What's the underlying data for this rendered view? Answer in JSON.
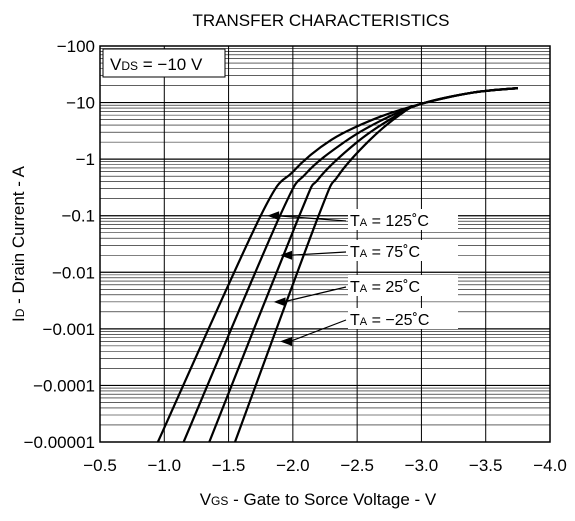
{
  "chart_data": {
    "type": "line",
    "title": "TRANSFER CHARACTERISTICS",
    "xlabel": "VGS - Gate to Sorce Voltage - V",
    "xlabel_parts": {
      "main": "V",
      "sub": "GS",
      "rest": " - Gate to Sorce Voltage - V"
    },
    "ylabel": "ID - Drain Current - A",
    "ylabel_parts": {
      "main": "I",
      "sub": "D",
      "rest": " - Drain Current - A"
    },
    "condition": "VDS = −10 V",
    "condition_parts": {
      "main": "V",
      "sub": "DS",
      "rest": " = −10 V"
    },
    "x_ticks": [
      "−0.5",
      "−1.0",
      "−1.5",
      "−2.0",
      "−2.5",
      "−3.0",
      "−3.5",
      "−4.0"
    ],
    "y_ticks": [
      "−0.00001",
      "−0.0001",
      "−0.001",
      "−0.01",
      "−0.1",
      "−1",
      "−10",
      "−100"
    ],
    "xlim": [
      -0.5,
      -4.0
    ],
    "ylim": [
      -1e-05,
      -100
    ],
    "y_scale": "log",
    "grid": true,
    "series": [
      {
        "name": "TA = 125˚C",
        "label_main": "T",
        "label_sub": "A",
        "label_rest": " = 125˚C",
        "x": [
          -0.95,
          -1.75,
          -2.0,
          -2.3,
          -2.65,
          -3.0,
          -3.4,
          -3.75
        ],
        "y": [
          -1e-05,
          -0.1,
          -0.6,
          -2.2,
          -5.3,
          -9.5,
          -15,
          -18
        ]
      },
      {
        "name": "TA = 75˚C",
        "label_main": "T",
        "label_sub": "A",
        "label_rest": " = 75˚C",
        "x": [
          -1.15,
          -1.9,
          -2.1,
          -2.4,
          -2.7,
          -3.0,
          -3.4,
          -3.75
        ],
        "y": [
          -1e-05,
          -0.1,
          -0.55,
          -2.0,
          -5.0,
          -9.5,
          -15,
          -18
        ]
      },
      {
        "name": "TA = 25˚C",
        "label_main": "T",
        "label_sub": "A",
        "label_rest": " = 25˚C",
        "x": [
          -1.35,
          -2.05,
          -2.2,
          -2.5,
          -2.8,
          -3.0,
          -3.4,
          -3.75
        ],
        "y": [
          -1e-05,
          -0.1,
          -0.45,
          -2.0,
          -5.8,
          -9.5,
          -15,
          -18
        ]
      },
      {
        "name": "TA = −25˚C",
        "label_main": "T",
        "label_sub": "A",
        "label_rest": " = −25˚C",
        "x": [
          -1.55,
          -2.2,
          -2.35,
          -2.6,
          -2.85,
          -3.0,
          -3.4,
          -3.75
        ],
        "y": [
          -1e-05,
          -0.1,
          -0.5,
          -2.2,
          -6.5,
          -9.5,
          -15,
          -18
        ]
      }
    ],
    "annotations": [
      {
        "series": 0,
        "point_x": -1.8,
        "point_y": -0.1
      },
      {
        "series": 1,
        "point_x": -1.9,
        "point_y": -0.02
      },
      {
        "series": 2,
        "point_x": -1.85,
        "point_y": -0.003
      },
      {
        "series": 3,
        "point_x": -1.9,
        "point_y": -0.0006
      }
    ]
  }
}
